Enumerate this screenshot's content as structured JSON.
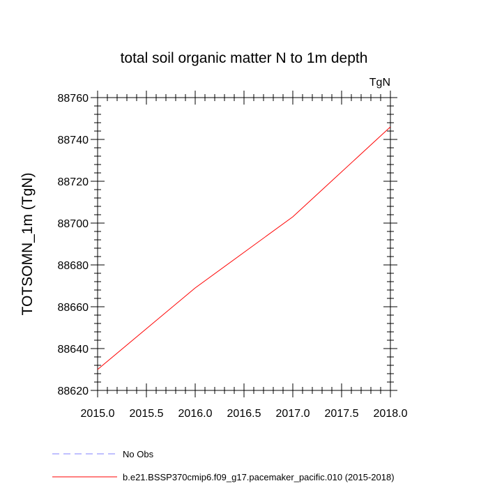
{
  "chart_data": {
    "type": "line",
    "title": "total soil organic matter N to 1m depth",
    "units": "TgN",
    "ylabel": "TOTSOMN_1m  (TgN)",
    "xlabel": "",
    "xlim": [
      2015.0,
      2018.0
    ],
    "ylim": [
      88620,
      88760
    ],
    "xticks": [
      "2015.0",
      "2015.5",
      "2016.0",
      "2016.5",
      "2017.0",
      "2017.5",
      "2018.0"
    ],
    "yticks": [
      "88620",
      "88640",
      "88660",
      "88680",
      "88700",
      "88720",
      "88740",
      "88760"
    ],
    "grid": false,
    "legend_position": "bottom",
    "series": [
      {
        "name": "No Obs",
        "color": "#8080ff",
        "dash": "dashed",
        "x": [],
        "y": []
      },
      {
        "name": "b.e21.BSSP370cmip6.f09_g17.pacemaker_pacific.010 (2015-2018)",
        "color": "#ff0000",
        "dash": "solid",
        "x": [
          2015.0,
          2016.0,
          2017.0,
          2018.0
        ],
        "y": [
          88630,
          88669,
          88703,
          88746
        ]
      }
    ]
  }
}
